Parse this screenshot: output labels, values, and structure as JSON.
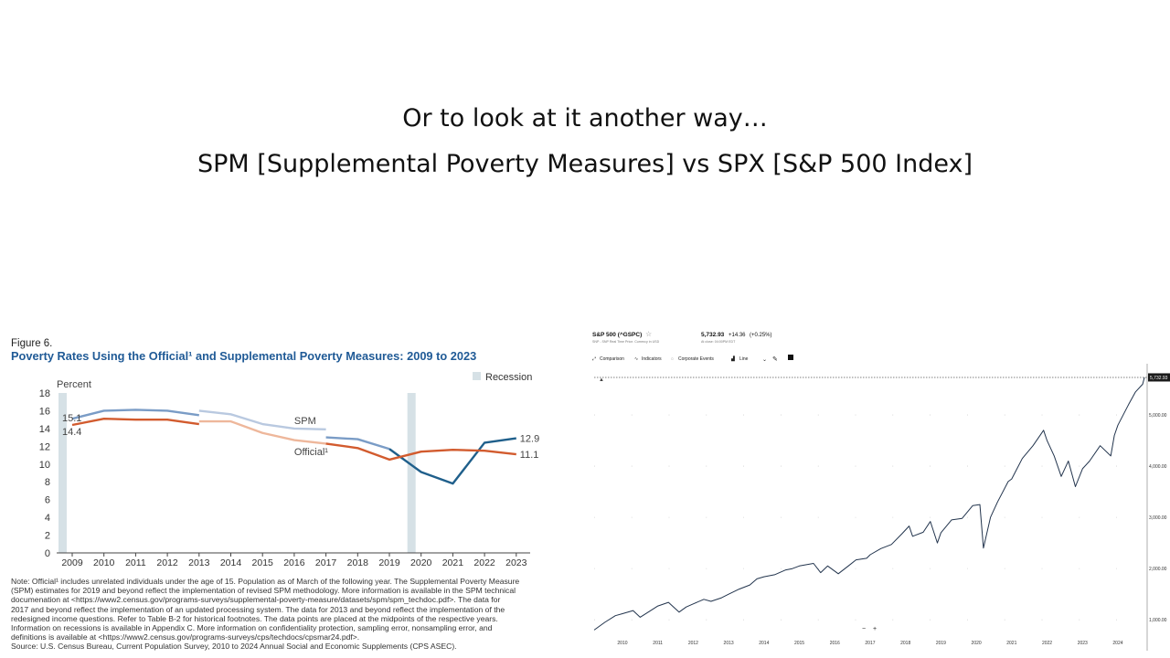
{
  "slide": {
    "title_line1": "Or to look at it another way…",
    "title_line2": "SPM [Supplemental Poverty Measures] vs SPX [S&P 500 Index]"
  },
  "colors": {
    "spm": "#7a9cc6",
    "spm_light": "#b9c9e0",
    "spm_dark": "#1f5f8b",
    "official": "#d25b2e",
    "official_light": "#eeb79b",
    "recession": "#d6e1e6",
    "figure_title": "#1f5a96",
    "spx_line": "#22344d"
  },
  "chart_data": [
    {
      "type": "line",
      "figure_label": "Figure 6.",
      "title": "Poverty Rates Using the Official¹ and Supplemental Poverty Measures: 2009 to 2023",
      "ylabel": "Percent",
      "legend": "Recession",
      "legend_position": "top-right",
      "grid": false,
      "categories": [
        "2009",
        "2010",
        "2011",
        "2012",
        "2013",
        "2014",
        "2015",
        "2016",
        "2017",
        "2018",
        "2019",
        "2020",
        "2021",
        "2022",
        "2023"
      ],
      "ylim": [
        0,
        18
      ],
      "yticks": [
        0,
        2,
        4,
        6,
        8,
        10,
        12,
        14,
        16,
        18
      ],
      "recessions": [
        2009,
        2020
      ],
      "series": [
        {
          "name": "SPM",
          "segments": [
            {
              "x": [
                2009,
                2010,
                2011,
                2012,
                2013
              ],
              "y": [
                15.1,
                16.0,
                16.1,
                16.0,
                15.5
              ],
              "style": "normal"
            },
            {
              "x": [
                2013,
                2014,
                2015,
                2016,
                2017
              ],
              "y": [
                16.0,
                15.6,
                14.5,
                14.0,
                13.9
              ],
              "style": "light"
            },
            {
              "x": [
                2017,
                2018,
                2019
              ],
              "y": [
                13.0,
                12.8,
                11.7
              ],
              "style": "normal"
            },
            {
              "x": [
                2019,
                2020,
                2021,
                2022,
                2023
              ],
              "y": [
                11.7,
                9.1,
                7.8,
                12.4,
                12.9
              ],
              "style": "dark"
            }
          ]
        },
        {
          "name": "Official¹",
          "segments": [
            {
              "x": [
                2009,
                2010,
                2011,
                2012,
                2013
              ],
              "y": [
                14.4,
                15.1,
                15.0,
                15.0,
                14.5
              ],
              "style": "normal"
            },
            {
              "x": [
                2013,
                2014,
                2015,
                2016,
                2017
              ],
              "y": [
                14.8,
                14.8,
                13.5,
                12.7,
                12.3
              ],
              "style": "light"
            },
            {
              "x": [
                2017,
                2018,
                2019,
                2020,
                2021,
                2022,
                2023
              ],
              "y": [
                12.3,
                11.8,
                10.5,
                11.4,
                11.6,
                11.5,
                11.1
              ],
              "style": "normal"
            }
          ]
        }
      ],
      "labels": [
        {
          "text": "15.1",
          "x": 2009,
          "y": 15.1
        },
        {
          "text": "14.4",
          "x": 2009,
          "y": 14.4
        },
        {
          "text": "12.9",
          "x": 2023,
          "y": 12.9
        },
        {
          "text": "11.1",
          "x": 2023,
          "y": 11.1
        },
        {
          "text": "SPM",
          "x": 2016,
          "y": 14.5
        },
        {
          "text": "Official¹",
          "x": 2016,
          "y": 11.0
        }
      ],
      "notes": [
        "Note: Official¹ includes unrelated individuals under the age of 15. Population as of March of the following year. The Supplemental Poverty Measure",
        "(SPM) estimates for 2019 and beyond reflect the implementation of revised SPM methodology. More information is available in the SPM technical",
        "documenation at <https://www2.census.gov/programs-surveys/supplemental-poverty-measure/datasets/spm/spm_techdoc.pdf>. The data for",
        "2017 and beyond reflect the implementation of an updated processing system. The data for 2013 and beyond reflect the implementation of the",
        "redesigned income questions. Refer to Table B-2 for historical footnotes. The data points are placed at the midpoints of the respective years.",
        "Information on recessions is available in Appendix C. More information on confidentiality protection, sampling error, nonsampling error, and",
        "definitions is available at <https://www2.census.gov/programs-surveys/cps/techdocs/cpsmar24.pdf>.",
        "Source: U.S. Census Bureau, Current Population Survey, 2010 to 2024 Annual Social and Economic Supplements (CPS ASEC)."
      ]
    },
    {
      "type": "line",
      "title": "S&P 500 (^GSPC)",
      "subtitle": "SNP - SNP Real Time Price. Currency in USD",
      "price": "5,732.93",
      "change": "+14.36",
      "change_pct": "(+0.25%)",
      "time": "At close: 04:00PM EDT",
      "toolbar": [
        "Comparison",
        "Indicators",
        "Corporate Events",
        "Line"
      ],
      "current_label": "5,732.93",
      "xticks": [
        "2010",
        "2011",
        "2012",
        "2013",
        "2014",
        "2015",
        "2016",
        "2017",
        "2018",
        "2019",
        "2020",
        "2021",
        "2022",
        "2023",
        "2024"
      ],
      "yticks": [
        "1,000.00",
        "2,000.00",
        "3,000.00",
        "4,000.00",
        "5,000.00"
      ],
      "ylim": [
        700,
        6000
      ],
      "grid": true,
      "x": [
        2009.2,
        2009.5,
        2009.8,
        2010.0,
        2010.3,
        2010.5,
        2010.8,
        2011.0,
        2011.3,
        2011.6,
        2011.8,
        2012.0,
        2012.3,
        2012.5,
        2012.8,
        2013.0,
        2013.3,
        2013.6,
        2013.8,
        2014.0,
        2014.3,
        2014.6,
        2014.8,
        2015.0,
        2015.4,
        2015.6,
        2015.8,
        2016.1,
        2016.4,
        2016.6,
        2016.9,
        2017.0,
        2017.3,
        2017.6,
        2017.9,
        2018.1,
        2018.2,
        2018.5,
        2018.7,
        2018.9,
        2019.0,
        2019.3,
        2019.6,
        2019.9,
        2020.1,
        2020.2,
        2020.4,
        2020.6,
        2020.9,
        2021.0,
        2021.3,
        2021.6,
        2021.9,
        2022.0,
        2022.2,
        2022.4,
        2022.6,
        2022.8,
        2023.0,
        2023.2,
        2023.5,
        2023.8,
        2023.9,
        2024.0,
        2024.3,
        2024.5,
        2024.7,
        2024.75
      ],
      "y": [
        800,
        950,
        1080,
        1120,
        1180,
        1050,
        1180,
        1270,
        1340,
        1150,
        1250,
        1310,
        1400,
        1360,
        1430,
        1500,
        1600,
        1680,
        1800,
        1840,
        1880,
        1970,
        2000,
        2050,
        2100,
        1920,
        2050,
        1900,
        2060,
        2170,
        2200,
        2270,
        2390,
        2470,
        2680,
        2830,
        2630,
        2710,
        2920,
        2500,
        2700,
        2950,
        2980,
        3230,
        3250,
        2400,
        3000,
        3300,
        3700,
        3750,
        4150,
        4400,
        4700,
        4500,
        4200,
        3800,
        4100,
        3600,
        3950,
        4100,
        4400,
        4200,
        4600,
        4800,
        5200,
        5450,
        5600,
        5732.93
      ]
    }
  ]
}
